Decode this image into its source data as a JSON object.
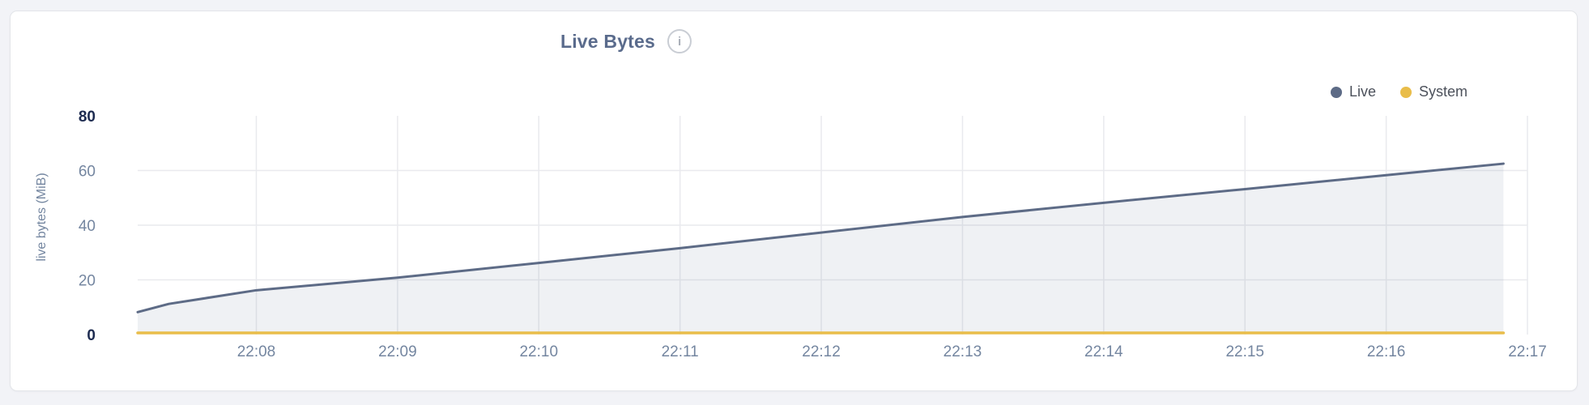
{
  "panel": {
    "title": "Live Bytes",
    "info_icon_glyph": "i"
  },
  "chart_data": {
    "type": "area",
    "title": "Live Bytes",
    "xlabel": "",
    "ylabel": "live bytes (MiB)",
    "ylim": [
      0,
      80
    ],
    "y_ticks": [
      0,
      20,
      40,
      60,
      80
    ],
    "y_ticks_emphasized": [
      0,
      80
    ],
    "x_ticks": [
      {
        "minute": 8,
        "label": "22:08"
      },
      {
        "minute": 9,
        "label": "22:09"
      },
      {
        "minute": 10,
        "label": "22:10"
      },
      {
        "minute": 11,
        "label": "22:11"
      },
      {
        "minute": 12,
        "label": "22:12"
      },
      {
        "minute": 13,
        "label": "22:13"
      },
      {
        "minute": 14,
        "label": "22:14"
      },
      {
        "minute": 15,
        "label": "22:15"
      },
      {
        "minute": 16,
        "label": "22:16"
      },
      {
        "minute": 17,
        "label": "22:17"
      }
    ],
    "xlim_minutes": [
      7.16,
      17
    ],
    "grid": true,
    "legend_position": "top-right",
    "series": [
      {
        "name": "Live",
        "color": "#5d6b86",
        "fill": "rgba(100,115,145,0.10)",
        "points": [
          [
            7.16,
            8.2
          ],
          [
            7.38,
            11.2
          ],
          [
            8,
            16.2
          ],
          [
            9,
            20.8
          ],
          [
            10,
            26.2
          ],
          [
            11,
            31.6
          ],
          [
            12,
            37.3
          ],
          [
            13,
            43.0
          ],
          [
            14,
            48.2
          ],
          [
            15,
            53.2
          ],
          [
            16,
            58.3
          ],
          [
            16.83,
            62.5
          ]
        ]
      },
      {
        "name": "System",
        "color": "#e9bd4a",
        "fill": "none",
        "points": [
          [
            7.16,
            0.6
          ],
          [
            16.83,
            0.6
          ]
        ]
      }
    ],
    "theme": {
      "axis_text": "#7486a0",
      "axis_text_strong": "#1d2b50",
      "gridline": "#e9eaee",
      "title_color": "#5a6b8c",
      "legend_text": "#4c515b"
    }
  }
}
